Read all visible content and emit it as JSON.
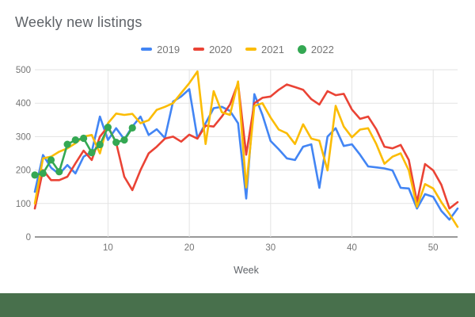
{
  "title": "Weekly new listings",
  "footer_bar_color": "#48704C",
  "axis": {
    "baseline_color": "#333333",
    "gridline_color": "#e3e3e3",
    "tick_label_color": "#757575",
    "axis_title_color": "#5f6368"
  },
  "chart_data": {
    "type": "line",
    "title": "Weekly new listings",
    "xlabel": "Week",
    "ylabel": "",
    "x_weeks": 53,
    "xticks": [
      10,
      20,
      30,
      40,
      50
    ],
    "ylim": [
      0,
      500
    ],
    "yticks": [
      0,
      100,
      200,
      300,
      400,
      500
    ],
    "grid": true,
    "legend_position": "top",
    "series": [
      {
        "name": "2019",
        "color": "#4285F4",
        "marker": "none",
        "values": [
          135,
          245,
          207,
          188,
          215,
          190,
          240,
          255,
          360,
          290,
          325,
          292,
          330,
          360,
          305,
          322,
          296,
          405,
          420,
          442,
          295,
          340,
          385,
          389,
          377,
          340,
          115,
          427,
          365,
          287,
          262,
          235,
          230,
          270,
          277,
          147,
          300,
          325,
          272,
          277,
          246,
          211,
          208,
          205,
          199,
          147,
          145,
          85,
          128,
          120,
          78,
          52,
          85
        ]
      },
      {
        "name": "2020",
        "color": "#EA4335",
        "marker": "none",
        "values": [
          85,
          200,
          170,
          170,
          180,
          220,
          258,
          230,
          300,
          330,
          282,
          180,
          140,
          200,
          250,
          270,
          294,
          300,
          285,
          306,
          294,
          333,
          330,
          360,
          396,
          460,
          246,
          400,
          416,
          420,
          440,
          456,
          448,
          440,
          412,
          396,
          436,
          424,
          428,
          381,
          353,
          360,
          322,
          270,
          265,
          275,
          230,
          104,
          218,
          199,
          156,
          85,
          104
        ]
      },
      {
        "name": "2021",
        "color": "#FBBC04",
        "marker": "none",
        "values": [
          100,
          235,
          240,
          255,
          265,
          280,
          300,
          305,
          250,
          340,
          369,
          365,
          368,
          340,
          349,
          380,
          389,
          400,
          430,
          460,
          495,
          278,
          436,
          373,
          365,
          465,
          148,
          392,
          400,
          357,
          321,
          310,
          278,
          337,
          294,
          288,
          199,
          392,
          330,
          298,
          321,
          325,
          278,
          219,
          240,
          250,
          199,
          90,
          158,
          145,
          104,
          69,
          30
        ]
      },
      {
        "name": "2022",
        "color": "#34A853",
        "marker": "circle",
        "values": [
          185,
          190,
          230,
          195,
          277,
          290,
          295,
          252,
          276,
          328,
          283,
          290,
          326
        ]
      }
    ]
  }
}
